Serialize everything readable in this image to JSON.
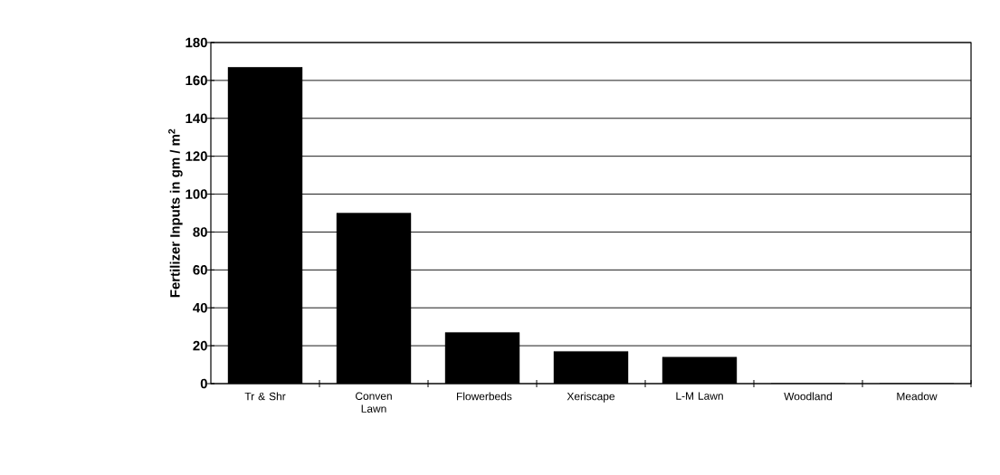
{
  "chart_data": {
    "type": "bar",
    "ylabel": "Fertilizer Inputs in gm / m$^{2}$",
    "categories": [
      "Tr & Shr",
      "Conven Lawn",
      "Flowerbeds",
      "Xeriscape",
      "L-M Lawn",
      "Woodland",
      "Meadow"
    ],
    "values": [
      167,
      90,
      27,
      17,
      14,
      0,
      0
    ],
    "color": "#000000",
    "ylim": [
      0,
      180
    ],
    "yticks": [
      0,
      20,
      40,
      60,
      80,
      100,
      120,
      140,
      160,
      180
    ],
    "grid": "y"
  }
}
